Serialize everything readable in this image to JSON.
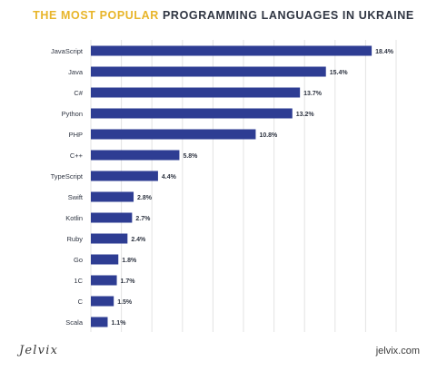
{
  "header": {
    "title_accent": "THE MOST POPULAR",
    "title_rest": "PROGRAMMING LANGUAGES IN UKRAINE"
  },
  "footer": {
    "brand": "Jelvix",
    "site": "jelvix.com"
  },
  "colors": {
    "bar": "#2e3d93",
    "accent": "#e8b52a",
    "grid": "#e3e3e3"
  },
  "chart_data": {
    "type": "bar",
    "orientation": "horizontal",
    "title": "THE MOST POPULAR PROGRAMMING LANGUAGES IN UKRAINE",
    "categories": [
      "JavaScript",
      "Java",
      "C#",
      "Python",
      "PHP",
      "C++",
      "TypeScript",
      "Swift",
      "Kotlin",
      "Ruby",
      "Go",
      "1C",
      "C",
      "Scala"
    ],
    "values": [
      18.4,
      15.4,
      13.7,
      13.2,
      10.8,
      5.8,
      4.4,
      2.8,
      2.7,
      2.4,
      1.8,
      1.7,
      1.5,
      1.1
    ],
    "value_labels": [
      "18.4%",
      "15.4%",
      "13.7%",
      "13.2%",
      "10.8%",
      "5.8%",
      "4.4%",
      "2.8%",
      "2.7%",
      "2.4%",
      "1.8%",
      "1.7%",
      "1.5%",
      "1.1%"
    ],
    "xlim": [
      0,
      20
    ],
    "grid": true,
    "legend": "none"
  }
}
